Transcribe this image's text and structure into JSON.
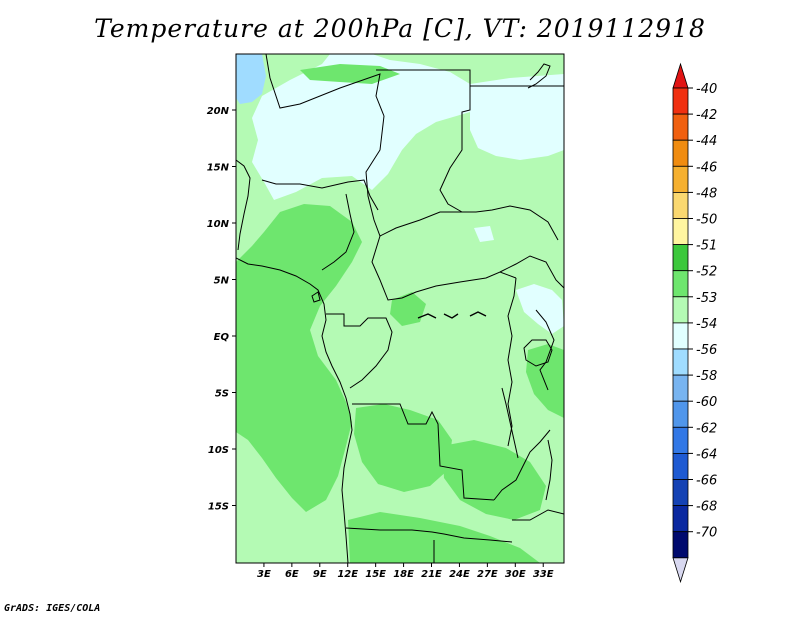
{
  "title": "Temperature at 200hPa [C], VT: 2019112918",
  "credit": "GrADS: IGES/COLA",
  "map": {
    "lon_labels": [
      "3E",
      "6E",
      "9E",
      "12E",
      "15E",
      "18E",
      "21E",
      "24E",
      "27E",
      "30E",
      "33E"
    ],
    "lat_labels": [
      "20N",
      "15N",
      "10N",
      "5N",
      "EQ",
      "5S",
      "10S",
      "15S"
    ]
  },
  "colorbar": {
    "labels": [
      "-40",
      "-42",
      "-44",
      "-46",
      "-48",
      "-50",
      "-51",
      "-52",
      "-53",
      "-54",
      "-56",
      "-58",
      "-60",
      "-62",
      "-64",
      "-66",
      "-68",
      "-70"
    ],
    "colors": [
      "#f03010",
      "#f06010",
      "#f08c10",
      "#f5b030",
      "#fad870",
      "#fff5a0",
      "#3cc83c",
      "#6ee66e",
      "#b4fab4",
      "#e1ffff",
      "#a0dcff",
      "#78b4f0",
      "#5096eb",
      "#3278e6",
      "#1e5ad2",
      "#1442b4",
      "#0a28a0",
      "#000a6e"
    ],
    "top_arrow_color": "#e11414",
    "bottom_arrow_color": "#d8d8f0"
  },
  "chart_data": {
    "type": "heatmap",
    "title": "Temperature at 200hPa [C], VT: 2019112918",
    "variable": "Temperature at 200hPa",
    "units": "C",
    "valid_time": "2019112918",
    "x_ticks": [
      "3E",
      "6E",
      "9E",
      "12E",
      "15E",
      "18E",
      "21E",
      "24E",
      "27E",
      "30E",
      "33E"
    ],
    "y_ticks": [
      "20N",
      "15N",
      "10N",
      "5N",
      "EQ",
      "5S",
      "10S",
      "15S"
    ],
    "lon_range": [
      0,
      35
    ],
    "lat_range": [
      -20,
      25
    ],
    "levels": [
      -40,
      -42,
      -44,
      -46,
      -48,
      -50,
      -51,
      -52,
      -53,
      -54,
      -56,
      -58,
      -60,
      -62,
      -64,
      -66,
      -68,
      -70
    ],
    "dominant_classes": [
      "-52 to -53 (green)",
      "-53 to -54 (light green)",
      "-54 to -56 (pale cyan) in the north"
    ]
  }
}
